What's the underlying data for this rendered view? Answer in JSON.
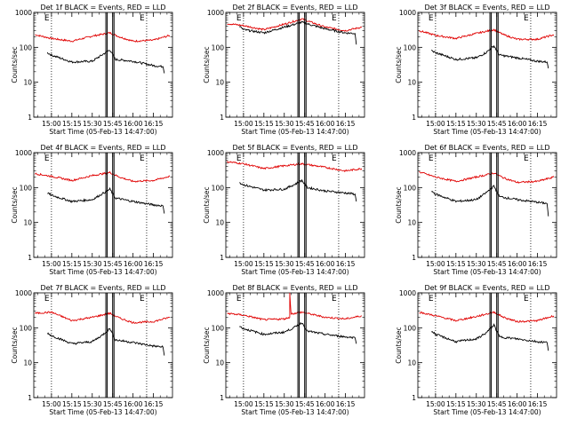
{
  "colors": {
    "events": "#000000",
    "lld": "#e00000",
    "axes": "#000000",
    "background": "#ffffff"
  },
  "chart_data": [
    {
      "type": "line",
      "title": "Det 1f BLACK = Events, RED = LLD",
      "xlabel": "Start Time (05-Feb-13 14:47:00)",
      "ylabel": "Counts/sec",
      "xticks": [
        "15:00",
        "15:15",
        "15:30",
        "15:45",
        "16:00",
        "16:15"
      ],
      "yticks": [
        "1",
        "10",
        "100",
        "1000"
      ],
      "yscale": "log",
      "ylim": [
        1,
        1000
      ],
      "xlim": [
        "14:47",
        "16:29"
      ],
      "dotted_lines": [
        "15:00",
        "16:10"
      ],
      "solid_lines": [
        "15:40",
        "15:41",
        "15:45",
        "15:46"
      ],
      "markers": [
        "E",
        "E"
      ],
      "series": [
        {
          "name": "Events",
          "color": "#000000",
          "x": [
            "14:57",
            "15:00",
            "15:15",
            "15:30",
            "15:37",
            "15:43",
            "15:47",
            "16:00",
            "16:15",
            "16:22",
            "16:23"
          ],
          "values": [
            70,
            60,
            38,
            40,
            60,
            85,
            45,
            40,
            30,
            28,
            18
          ]
        },
        {
          "name": "LLD",
          "color": "#e00000",
          "x": [
            "14:48",
            "15:00",
            "15:15",
            "15:30",
            "15:43",
            "15:50",
            "16:00",
            "16:15",
            "16:27"
          ],
          "values": [
            230,
            180,
            150,
            210,
            260,
            200,
            150,
            160,
            220
          ]
        }
      ]
    },
    {
      "type": "line",
      "title": "Det 2f BLACK = Events, RED = LLD",
      "xlabel": "Start Time (05-Feb-13 14:47:00)",
      "ylabel": "Counts/sec",
      "xticks": [
        "15:00",
        "15:15",
        "15:30",
        "15:45",
        "16:00",
        "16:15"
      ],
      "yticks": [
        "1",
        "10",
        "100",
        "1000"
      ],
      "yscale": "log",
      "ylim": [
        1,
        1000
      ],
      "xlim": [
        "14:47",
        "16:29"
      ],
      "dotted_lines": [
        "15:00",
        "16:10"
      ],
      "solid_lines": [
        "15:40",
        "15:41",
        "15:45",
        "15:46"
      ],
      "markers": [
        "E",
        "E"
      ],
      "series": [
        {
          "name": "Events",
          "color": "#000000",
          "x": [
            "14:57",
            "15:00",
            "15:15",
            "15:30",
            "15:43",
            "16:00",
            "16:15",
            "16:22",
            "16:23"
          ],
          "values": [
            400,
            320,
            260,
            380,
            520,
            340,
            260,
            250,
            120
          ]
        },
        {
          "name": "LLD",
          "color": "#e00000",
          "x": [
            "14:48",
            "15:00",
            "15:15",
            "15:30",
            "15:43",
            "16:00",
            "16:15",
            "16:27"
          ],
          "values": [
            480,
            420,
            320,
            460,
            650,
            380,
            300,
            380
          ]
        }
      ]
    },
    {
      "type": "line",
      "title": "Det 3f BLACK = Events, RED = LLD",
      "xlabel": "Start Time (05-Feb-13 14:47:00)",
      "ylabel": "Counts/sec",
      "xticks": [
        "15:00",
        "15:15",
        "15:30",
        "15:45",
        "16:00",
        "16:15"
      ],
      "yticks": [
        "1",
        "10",
        "100",
        "1000"
      ],
      "yscale": "log",
      "ylim": [
        1,
        1000
      ],
      "xlim": [
        "14:47",
        "16:29"
      ],
      "dotted_lines": [
        "15:00",
        "16:10"
      ],
      "solid_lines": [
        "15:40",
        "15:41",
        "15:45",
        "15:46"
      ],
      "markers": [
        "E",
        "E"
      ],
      "series": [
        {
          "name": "Events",
          "color": "#000000",
          "x": [
            "14:57",
            "15:00",
            "15:15",
            "15:30",
            "15:37",
            "15:43",
            "15:47",
            "16:00",
            "16:15",
            "16:22",
            "16:23"
          ],
          "values": [
            80,
            70,
            45,
            50,
            70,
            110,
            60,
            50,
            40,
            38,
            25
          ]
        },
        {
          "name": "LLD",
          "color": "#e00000",
          "x": [
            "14:48",
            "15:00",
            "15:15",
            "15:30",
            "15:43",
            "15:50",
            "16:00",
            "16:15",
            "16:27"
          ],
          "values": [
            300,
            220,
            180,
            250,
            320,
            230,
            170,
            170,
            230
          ]
        }
      ]
    },
    {
      "type": "line",
      "title": "Det 4f BLACK = Events, RED = LLD",
      "xlabel": "Start Time (05-Feb-13 14:47:00)",
      "ylabel": "Counts/sec",
      "xticks": [
        "15:00",
        "15:15",
        "15:30",
        "15:45",
        "16:00",
        "16:15"
      ],
      "yticks": [
        "1",
        "10",
        "100",
        "1000"
      ],
      "yscale": "log",
      "ylim": [
        1,
        1000
      ],
      "xlim": [
        "14:47",
        "16:29"
      ],
      "dotted_lines": [
        "15:00",
        "16:10"
      ],
      "solid_lines": [
        "15:40",
        "15:41",
        "15:45",
        "15:46"
      ],
      "markers": [
        "E",
        "E"
      ],
      "series": [
        {
          "name": "Events",
          "color": "#000000",
          "x": [
            "14:57",
            "15:00",
            "15:15",
            "15:30",
            "15:37",
            "15:43",
            "15:47",
            "16:00",
            "16:15",
            "16:22",
            "16:23"
          ],
          "values": [
            70,
            60,
            40,
            45,
            65,
            90,
            50,
            40,
            32,
            30,
            18
          ]
        },
        {
          "name": "LLD",
          "color": "#e00000",
          "x": [
            "14:48",
            "15:00",
            "15:15",
            "15:30",
            "15:43",
            "15:50",
            "16:00",
            "16:15",
            "16:27"
          ],
          "values": [
            250,
            210,
            160,
            220,
            270,
            200,
            150,
            160,
            210
          ]
        }
      ]
    },
    {
      "type": "line",
      "title": "Det 5f BLACK = Events, RED = LLD",
      "xlabel": "Start Time (05-Feb-13 14:47:00)",
      "ylabel": "Counts/sec",
      "xticks": [
        "15:00",
        "15:15",
        "15:30",
        "15:45",
        "16:00",
        "16:15"
      ],
      "yticks": [
        "1",
        "10",
        "100",
        "1000"
      ],
      "yscale": "log",
      "ylim": [
        1,
        1000
      ],
      "xlim": [
        "14:47",
        "16:29"
      ],
      "dotted_lines": [
        "15:00",
        "16:10"
      ],
      "solid_lines": [
        "15:40",
        "15:41",
        "15:45",
        "15:46"
      ],
      "markers": [
        "E",
        "E"
      ],
      "series": [
        {
          "name": "Events",
          "color": "#000000",
          "x": [
            "14:57",
            "15:00",
            "15:15",
            "15:30",
            "15:37",
            "15:43",
            "15:47",
            "16:00",
            "16:15",
            "16:22",
            "16:23"
          ],
          "values": [
            140,
            120,
            85,
            90,
            120,
            160,
            100,
            80,
            70,
            65,
            40
          ]
        },
        {
          "name": "LLD",
          "color": "#e00000",
          "x": [
            "14:48",
            "15:00",
            "15:15",
            "15:30",
            "15:43",
            "16:00",
            "16:15",
            "16:27"
          ],
          "values": [
            550,
            480,
            350,
            420,
            480,
            380,
            300,
            350
          ]
        }
      ]
    },
    {
      "type": "line",
      "title": "Det 6f BLACK = Events, RED = LLD",
      "xlabel": "Start Time (05-Feb-13 14:47:00)",
      "ylabel": "Counts/sec",
      "xticks": [
        "15:00",
        "15:15",
        "15:30",
        "15:45",
        "16:00",
        "16:15"
      ],
      "yticks": [
        "1",
        "10",
        "100",
        "1000"
      ],
      "yscale": "log",
      "ylim": [
        1,
        1000
      ],
      "xlim": [
        "14:47",
        "16:29"
      ],
      "dotted_lines": [
        "15:00",
        "16:10"
      ],
      "solid_lines": [
        "15:40",
        "15:41",
        "15:45",
        "15:46"
      ],
      "markers": [
        "E",
        "E"
      ],
      "series": [
        {
          "name": "Events",
          "color": "#000000",
          "x": [
            "14:57",
            "15:00",
            "15:15",
            "15:30",
            "15:37",
            "15:43",
            "15:47",
            "16:00",
            "16:15",
            "16:22",
            "16:23"
          ],
          "values": [
            80,
            65,
            40,
            45,
            70,
            110,
            55,
            45,
            38,
            35,
            15
          ]
        },
        {
          "name": "LLD",
          "color": "#e00000",
          "x": [
            "14:48",
            "15:00",
            "15:15",
            "15:30",
            "15:43",
            "15:50",
            "16:00",
            "16:15",
            "16:27"
          ],
          "values": [
            280,
            200,
            150,
            200,
            260,
            190,
            140,
            150,
            200
          ]
        }
      ]
    },
    {
      "type": "line",
      "title": "Det 7f BLACK = Events, RED = LLD",
      "xlabel": "Start Time (05-Feb-13 14:47:00)",
      "ylabel": "Counts/sec",
      "xticks": [
        "15:00",
        "15:15",
        "15:30",
        "15:45",
        "16:00",
        "16:15"
      ],
      "yticks": [
        "1",
        "10",
        "100",
        "1000"
      ],
      "yscale": "log",
      "ylim": [
        1,
        1000
      ],
      "xlim": [
        "14:47",
        "16:29"
      ],
      "dotted_lines": [
        "15:00",
        "16:10"
      ],
      "solid_lines": [
        "15:40",
        "15:41",
        "15:45",
        "15:46"
      ],
      "markers": [
        "E",
        "E"
      ],
      "series": [
        {
          "name": "Events",
          "color": "#000000",
          "x": [
            "14:57",
            "15:00",
            "15:15",
            "15:30",
            "15:37",
            "15:43",
            "15:47",
            "16:00",
            "16:15",
            "16:22",
            "16:23"
          ],
          "values": [
            70,
            60,
            35,
            40,
            60,
            95,
            45,
            38,
            30,
            28,
            16
          ]
        },
        {
          "name": "LLD",
          "color": "#e00000",
          "x": [
            "14:48",
            "15:00",
            "15:15",
            "15:30",
            "15:43",
            "15:50",
            "16:00",
            "16:15",
            "16:27"
          ],
          "values": [
            260,
            280,
            160,
            200,
            260,
            190,
            140,
            150,
            200
          ]
        }
      ]
    },
    {
      "type": "line",
      "title": "Det 8f BLACK = Events, RED = LLD",
      "xlabel": "Start Time (05-Feb-13 14:47:00)",
      "ylabel": "Counts/sec",
      "xticks": [
        "15:00",
        "15:15",
        "15:30",
        "15:45",
        "16:00",
        "16:15"
      ],
      "yticks": [
        "1",
        "10",
        "100",
        "1000"
      ],
      "yscale": "log",
      "ylim": [
        1,
        1000
      ],
      "xlim": [
        "14:47",
        "16:29"
      ],
      "dotted_lines": [
        "15:00",
        "16:10"
      ],
      "solid_lines": [
        "15:40",
        "15:41",
        "15:45",
        "15:46"
      ],
      "markers": [
        "E",
        "E"
      ],
      "series": [
        {
          "name": "Events",
          "color": "#000000",
          "x": [
            "14:57",
            "15:00",
            "15:15",
            "15:30",
            "15:37",
            "15:43",
            "15:47",
            "16:00",
            "16:15",
            "16:22",
            "16:23"
          ],
          "values": [
            110,
            95,
            65,
            75,
            100,
            140,
            80,
            65,
            55,
            52,
            35
          ]
        },
        {
          "name": "LLD",
          "color": "#e00000",
          "x": [
            "14:48",
            "15:00",
            "15:15",
            "15:30",
            "15:34",
            "15:34",
            "15:35",
            "15:43",
            "16:00",
            "16:15",
            "16:27"
          ],
          "values": [
            260,
            230,
            170,
            180,
            200,
            1000,
            250,
            280,
            200,
            180,
            220
          ]
        }
      ]
    },
    {
      "type": "line",
      "title": "Det 9f BLACK = Events, RED = LLD",
      "xlabel": "Start Time (05-Feb-13 14:47:00)",
      "ylabel": "Counts/sec",
      "xticks": [
        "15:00",
        "15:15",
        "15:30",
        "15:45",
        "16:00",
        "16:15"
      ],
      "yticks": [
        "1",
        "10",
        "100",
        "1000"
      ],
      "yscale": "log",
      "ylim": [
        1,
        1000
      ],
      "xlim": [
        "14:47",
        "16:29"
      ],
      "dotted_lines": [
        "15:00",
        "16:10"
      ],
      "solid_lines": [
        "15:40",
        "15:41",
        "15:45",
        "15:46"
      ],
      "markers": [
        "E",
        "E"
      ],
      "series": [
        {
          "name": "Events",
          "color": "#000000",
          "x": [
            "14:57",
            "15:00",
            "15:15",
            "15:30",
            "15:37",
            "15:43",
            "15:47",
            "16:00",
            "16:15",
            "16:22",
            "16:23"
          ],
          "values": [
            80,
            65,
            40,
            48,
            70,
            120,
            55,
            48,
            40,
            38,
            22
          ]
        },
        {
          "name": "LLD",
          "color": "#e00000",
          "x": [
            "14:48",
            "15:00",
            "15:15",
            "15:30",
            "15:43",
            "15:50",
            "16:00",
            "16:15",
            "16:27"
          ],
          "values": [
            280,
            220,
            160,
            210,
            280,
            200,
            150,
            160,
            220
          ]
        }
      ]
    }
  ]
}
